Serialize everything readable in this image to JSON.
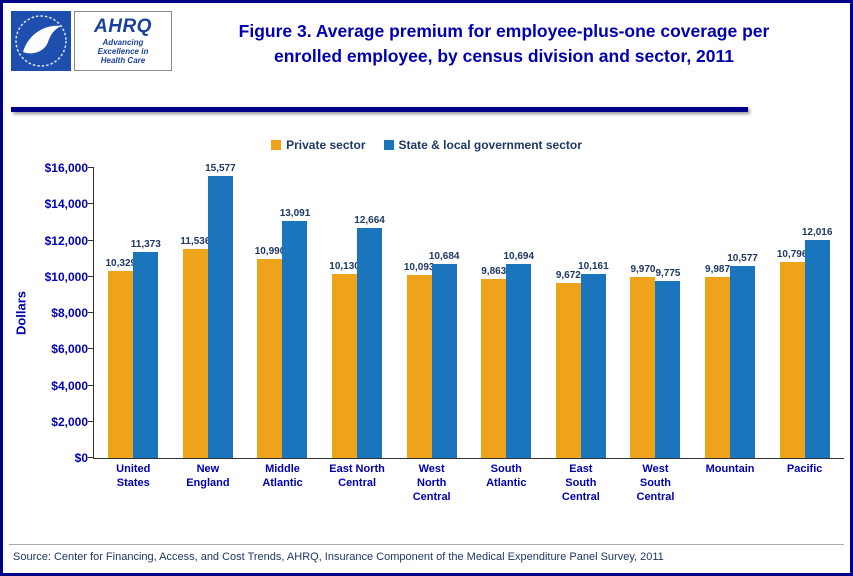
{
  "header": {
    "ahrq_logo_text": "AHRQ",
    "ahrq_tagline_lines": [
      "Advancing",
      "Excellence in",
      "Health Care"
    ]
  },
  "colors": {
    "border_navy": "#00008B",
    "title_blue": "#0000B0",
    "value_label_navy": "#1F3864",
    "private_sector_orange": "#EEA31B",
    "government_sector_blue": "#1B75BC"
  },
  "chart_data": {
    "type": "bar",
    "title": "Figure 3. Average premium for employee-plus-one coverage per enrolled employee, by census division and sector, 2011",
    "categories": [
      "United States",
      "New England",
      "Middle Atlantic",
      "East North Central",
      "West North Central",
      "South Atlantic",
      "East South Central",
      "West South Central",
      "Mountain",
      "Pacific"
    ],
    "series": [
      {
        "name": "Private sector",
        "color": "#EEA31B",
        "values": [
          10329,
          11536,
          10990,
          10130,
          10093,
          9863,
          9672,
          9970,
          9987,
          10796
        ]
      },
      {
        "name": "State & local government sector",
        "color": "#1B75BC",
        "values": [
          11373,
          15577,
          13091,
          12664,
          10684,
          10694,
          10161,
          9775,
          10577,
          12016
        ]
      }
    ],
    "xlabel": "",
    "ylabel": "Dollars",
    "ylim": [
      0,
      16000
    ],
    "ytick_step": 2000,
    "ytick_labels": [
      "$0",
      "$2,000",
      "$4,000",
      "$6,000",
      "$8,000",
      "$10,000",
      "$12,000",
      "$14,000",
      "$16,000"
    ],
    "grid": false,
    "legend_position": "top",
    "value_labels": true
  },
  "footer": {
    "source": "Source: Center for Financing, Access, and Cost Trends, AHRQ, Insurance Component of the Medical Expenditure Panel Survey, 2011"
  }
}
